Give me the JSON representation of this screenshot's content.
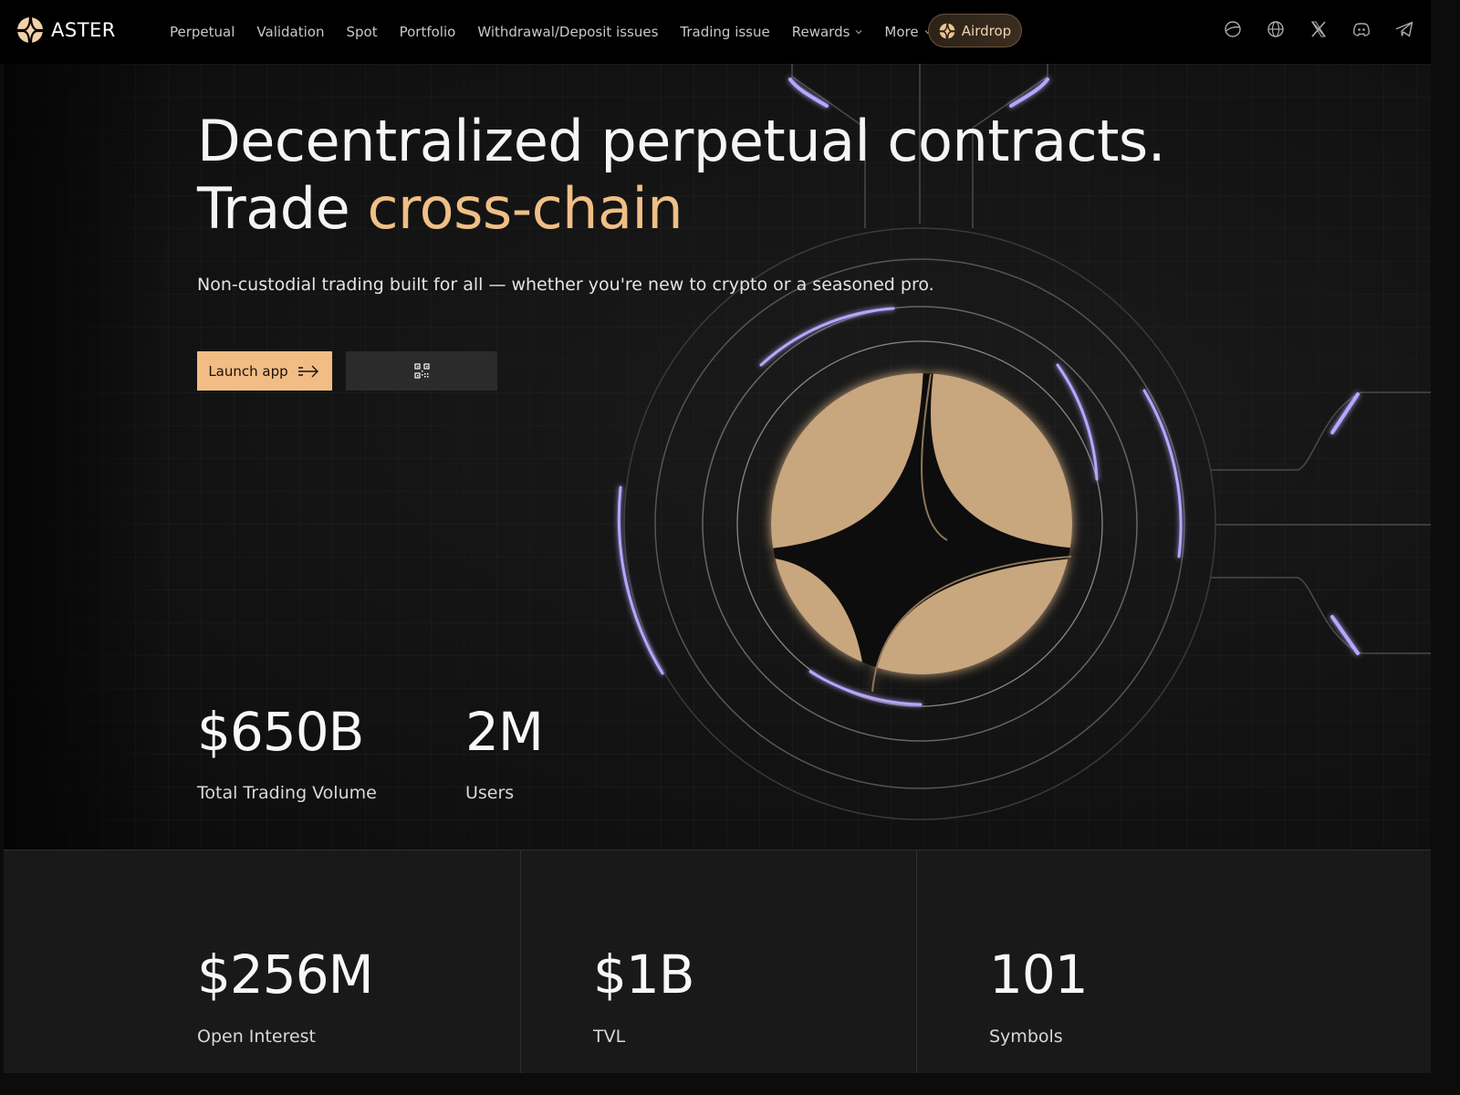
{
  "brand": {
    "name": "ASTER"
  },
  "nav": {
    "links": [
      {
        "label": "Perpetual"
      },
      {
        "label": "Validation"
      },
      {
        "label": "Spot"
      },
      {
        "label": "Portfolio"
      },
      {
        "label": "Withdrawal/Deposit issues"
      },
      {
        "label": "Trading issue"
      },
      {
        "label": "Rewards"
      },
      {
        "label": "More"
      }
    ],
    "airdrop_label": "Airdrop",
    "social_icons": [
      "planet-icon",
      "globe-icon",
      "x-icon",
      "discord-icon",
      "telegram-icon"
    ]
  },
  "hero": {
    "headline_line1": "Decentralized perpetual contracts.",
    "headline_line2_prefix": "Trade",
    "headline_line2_accent": "cross-chain",
    "subtitle": "Non-custodial trading built for all — whether you're new to crypto or a seasoned pro.",
    "launch_label": "Launch app",
    "stats": [
      {
        "value": "$650B",
        "label": "Total Trading Volume"
      },
      {
        "value": "2M",
        "label": "Users"
      }
    ]
  },
  "bottom_stats": [
    {
      "value": "$256M",
      "label": "Open Interest"
    },
    {
      "value": "$1B",
      "label": "TVL"
    },
    {
      "value": "101",
      "label": "Symbols"
    }
  ],
  "colors": {
    "accent": "#f0bf86",
    "button_bg": "#f1bd84",
    "glow_purple": "#b7a6ff",
    "emblem": "#c8a67e"
  }
}
